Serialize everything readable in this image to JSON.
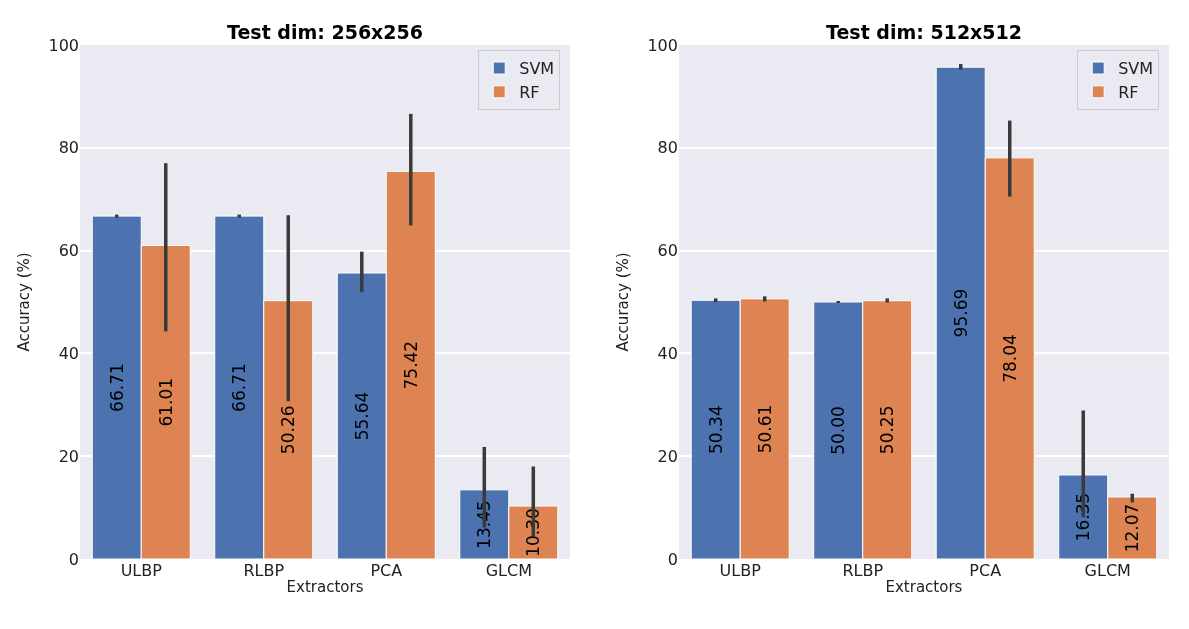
{
  "chart_data": [
    {
      "type": "bar",
      "title": "Test dim: 256x256",
      "xlabel": "Extractors",
      "ylabel": "Accuracy (%)",
      "categories": [
        "ULBP",
        "RLBP",
        "PCA",
        "GLCM"
      ],
      "ylim": [
        0,
        100
      ],
      "yticks": [
        0,
        20,
        40,
        60,
        80,
        100
      ],
      "grid": "y",
      "legend": "top right",
      "series": [
        {
          "name": "SVM",
          "color": "#4c72b0",
          "values": [
            66.71,
            66.71,
            55.64,
            13.45
          ],
          "value_labels": [
            "66.71",
            "66.71",
            "55.64",
            "13.45"
          ],
          "errors": [
            [
              66.4,
              67.0
            ],
            [
              66.4,
              67.0
            ],
            [
              51.9,
              59.8
            ],
            [
              6.1,
              21.8
            ]
          ]
        },
        {
          "name": "RF",
          "color": "#dd8452",
          "values": [
            61.01,
            50.26,
            75.42,
            10.3
          ],
          "value_labels": [
            "61.01",
            "50.26",
            "75.42",
            "10.30"
          ],
          "errors": [
            [
              44.3,
              77.0
            ],
            [
              30.7,
              66.9
            ],
            [
              64.9,
              86.6
            ],
            [
              4.4,
              18.0
            ]
          ]
        }
      ]
    },
    {
      "type": "bar",
      "title": "Test dim: 512x512",
      "xlabel": "Extractors",
      "ylabel": "Accuracy (%)",
      "categories": [
        "ULBP",
        "RLBP",
        "PCA",
        "GLCM"
      ],
      "ylim": [
        0,
        100
      ],
      "yticks": [
        0,
        20,
        40,
        60,
        80,
        100
      ],
      "grid": "y",
      "legend": "top right",
      "series": [
        {
          "name": "SVM",
          "color": "#4c72b0",
          "values": [
            50.34,
            50.0,
            95.69,
            16.35
          ],
          "value_labels": [
            "50.34",
            "50.00",
            "95.69",
            "16.35"
          ],
          "errors": [
            [
              50.0,
              50.7
            ],
            [
              49.8,
              50.2
            ],
            [
              95.2,
              96.3
            ],
            [
              8.1,
              28.9
            ]
          ]
        },
        {
          "name": "RF",
          "color": "#dd8452",
          "values": [
            50.61,
            50.25,
            78.04,
            12.07
          ],
          "value_labels": [
            "50.61",
            "50.25",
            "78.04",
            "12.07"
          ],
          "errors": [
            [
              50.1,
              51.1
            ],
            [
              49.9,
              50.7
            ],
            [
              70.5,
              85.3
            ],
            [
              11.0,
              12.7
            ]
          ]
        }
      ]
    }
  ]
}
